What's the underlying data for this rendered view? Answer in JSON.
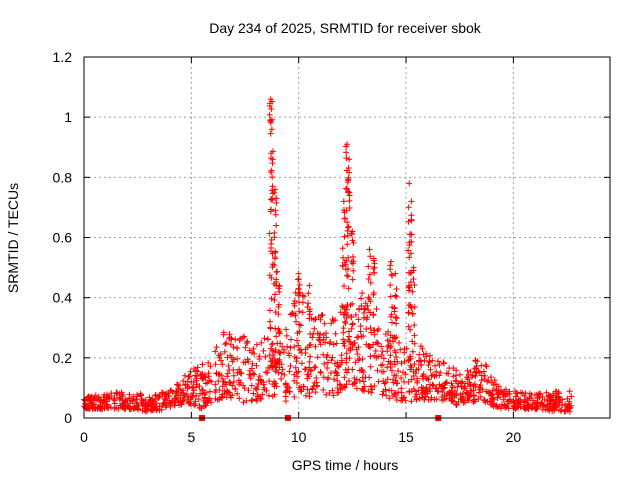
{
  "chart_data": {
    "type": "scatter",
    "title": "Day 234 of 2025, SRMTID for receiver sbok",
    "xlabel": "GPS time / hours",
    "ylabel": "SRMTID / TECUs",
    "xlim": [
      0,
      24.5
    ],
    "ylim": [
      0,
      1.2
    ],
    "xticks": [
      0,
      5,
      10,
      15,
      20
    ],
    "xtick_labels": [
      "0",
      "5",
      "10",
      "15",
      "20"
    ],
    "yticks": [
      0,
      0.2,
      0.4,
      0.6,
      0.8,
      1.0,
      1.2
    ],
    "ytick_labels": [
      "0",
      "0.2",
      "0.4",
      "0.6",
      "0.8",
      "1",
      "1.2"
    ],
    "grid": true,
    "marker": "plus",
    "color": "#ff0000",
    "gap_markers_x": [
      5.5,
      9.5,
      16.5
    ],
    "envelope": [
      [
        0.0,
        0.03,
        0.07
      ],
      [
        1.0,
        0.03,
        0.08
      ],
      [
        2.0,
        0.03,
        0.09
      ],
      [
        3.0,
        0.02,
        0.08
      ],
      [
        4.0,
        0.03,
        0.09
      ],
      [
        4.8,
        0.05,
        0.15
      ],
      [
        5.5,
        0.03,
        0.18
      ],
      [
        6.0,
        0.05,
        0.24
      ],
      [
        6.6,
        0.07,
        0.32
      ],
      [
        7.0,
        0.06,
        0.27
      ],
      [
        7.5,
        0.05,
        0.28
      ],
      [
        8.0,
        0.05,
        0.24
      ],
      [
        8.5,
        0.06,
        0.3
      ],
      [
        9.0,
        0.08,
        0.32
      ],
      [
        9.5,
        0.05,
        0.34
      ],
      [
        10.0,
        0.08,
        0.45
      ],
      [
        10.5,
        0.07,
        0.36
      ],
      [
        11.0,
        0.08,
        0.35
      ],
      [
        11.5,
        0.07,
        0.34
      ],
      [
        12.0,
        0.09,
        0.38
      ],
      [
        12.5,
        0.1,
        0.4
      ],
      [
        13.0,
        0.09,
        0.42
      ],
      [
        13.5,
        0.08,
        0.38
      ],
      [
        14.0,
        0.07,
        0.32
      ],
      [
        14.5,
        0.06,
        0.34
      ],
      [
        15.0,
        0.05,
        0.3
      ],
      [
        15.5,
        0.06,
        0.26
      ],
      [
        16.0,
        0.06,
        0.22
      ],
      [
        16.5,
        0.06,
        0.19
      ],
      [
        17.0,
        0.05,
        0.18
      ],
      [
        17.5,
        0.04,
        0.15
      ],
      [
        18.0,
        0.05,
        0.16
      ],
      [
        18.5,
        0.06,
        0.23
      ],
      [
        19.0,
        0.04,
        0.14
      ],
      [
        19.5,
        0.03,
        0.1
      ],
      [
        20.0,
        0.03,
        0.09
      ],
      [
        21.0,
        0.03,
        0.08
      ],
      [
        22.0,
        0.02,
        0.09
      ],
      [
        22.7,
        0.02,
        0.09
      ]
    ],
    "spikes": [
      {
        "x": 8.7,
        "peak": 1.06
      },
      {
        "x": 8.75,
        "peak": 0.96
      },
      {
        "x": 8.9,
        "peak": 0.76
      },
      {
        "x": 8.95,
        "peak": 0.64
      },
      {
        "x": 9.1,
        "peak": 0.44
      },
      {
        "x": 10.0,
        "peak": 0.48
      },
      {
        "x": 10.5,
        "peak": 0.44
      },
      {
        "x": 12.1,
        "peak": 0.72
      },
      {
        "x": 12.25,
        "peak": 0.91
      },
      {
        "x": 12.35,
        "peak": 0.86
      },
      {
        "x": 12.5,
        "peak": 0.62
      },
      {
        "x": 13.3,
        "peak": 0.56
      },
      {
        "x": 13.5,
        "peak": 0.53
      },
      {
        "x": 14.3,
        "peak": 0.52
      },
      {
        "x": 14.5,
        "peak": 0.48
      },
      {
        "x": 15.15,
        "peak": 0.78
      },
      {
        "x": 15.25,
        "peak": 0.72
      },
      {
        "x": 15.35,
        "peak": 0.5
      }
    ],
    "n_points": 1400
  }
}
